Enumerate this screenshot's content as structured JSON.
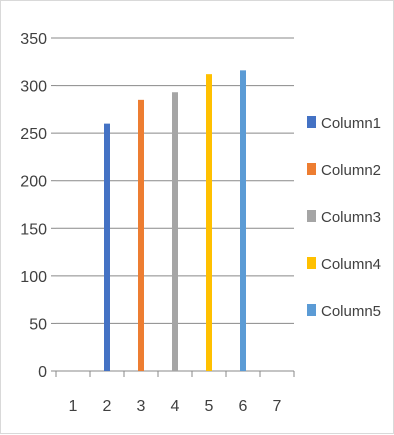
{
  "chart_data": {
    "type": "bar",
    "title": "",
    "xlabel": "",
    "ylabel": "",
    "x_ticks": [
      "1",
      "2",
      "3",
      "4",
      "5",
      "6",
      "7"
    ],
    "ylim": [
      0,
      350
    ],
    "y_ticks": [
      0,
      50,
      100,
      150,
      200,
      250,
      300,
      350
    ],
    "grid": true,
    "legend_position": "right",
    "series": [
      {
        "name": "Column1",
        "x": 2,
        "value": 260,
        "color": "#4472C4"
      },
      {
        "name": "Column2",
        "x": 3,
        "value": 285,
        "color": "#ED7D31"
      },
      {
        "name": "Column3",
        "x": 4,
        "value": 293,
        "color": "#A5A5A5"
      },
      {
        "name": "Column4",
        "x": 5,
        "value": 312,
        "color": "#FFC000"
      },
      {
        "name": "Column5",
        "x": 6,
        "value": 316,
        "color": "#5B9BD5"
      }
    ]
  }
}
